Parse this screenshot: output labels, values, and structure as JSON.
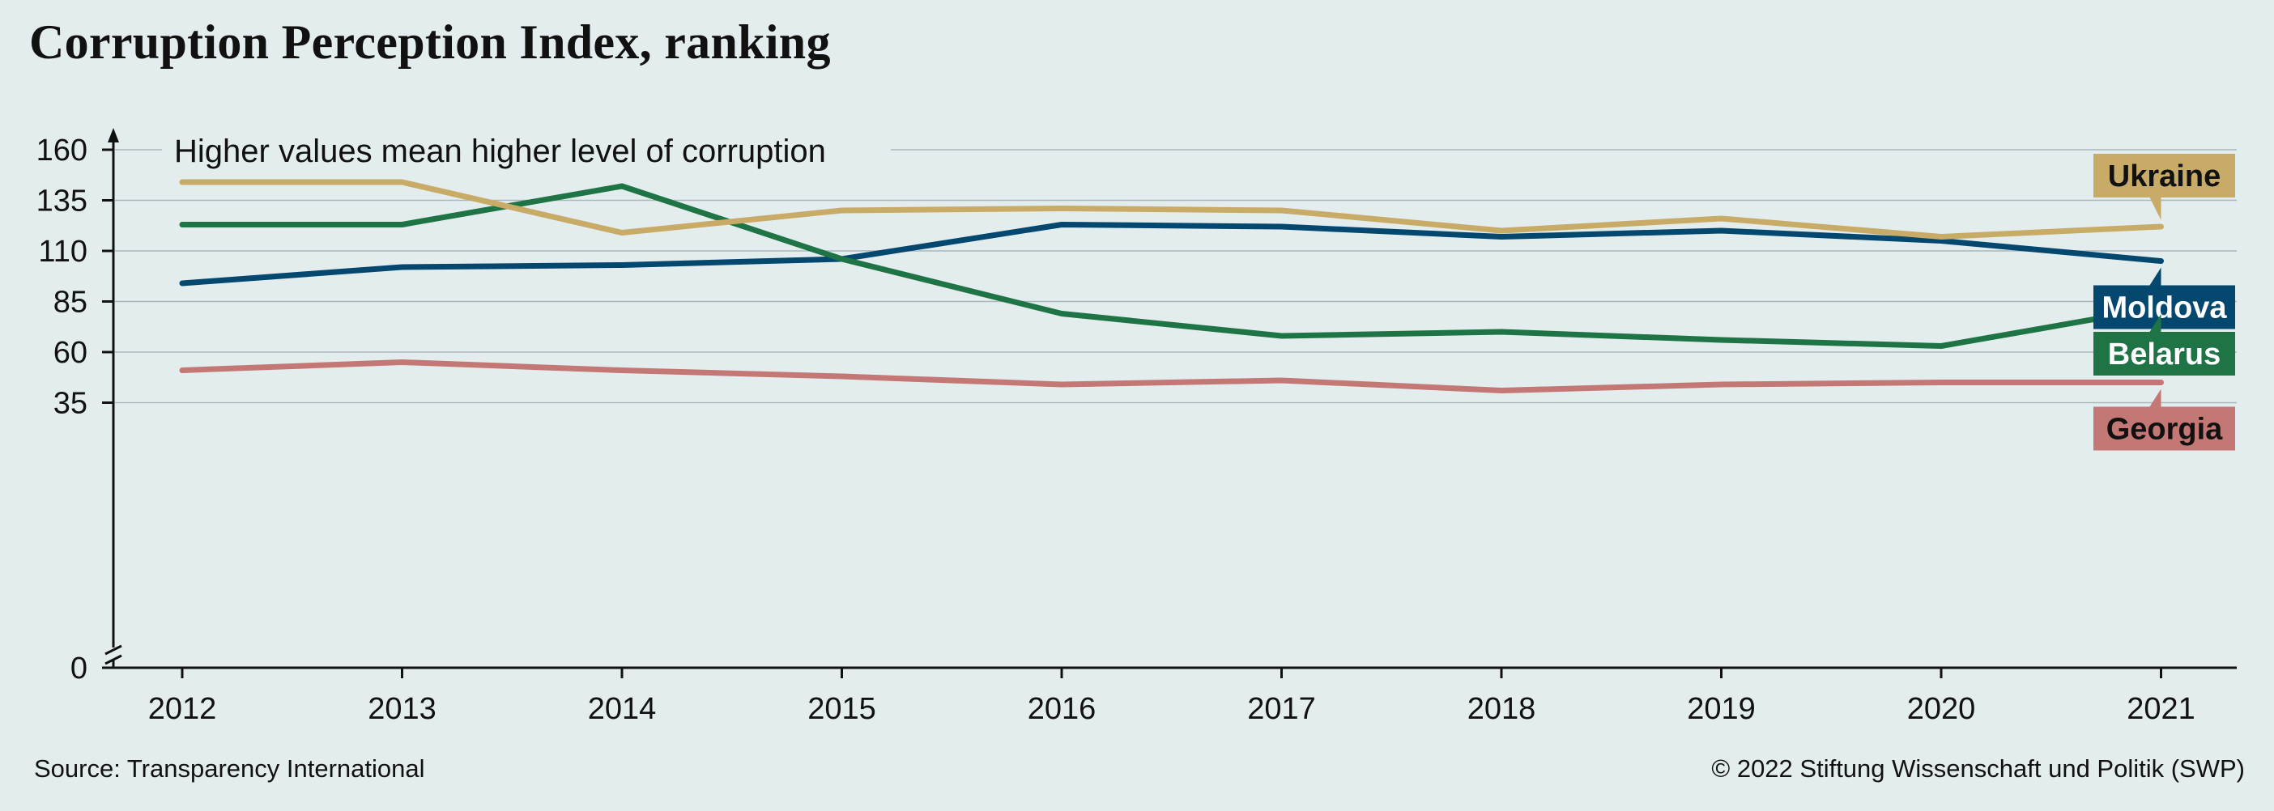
{
  "chart_data": {
    "type": "line",
    "title": "Corruption Perception Index, ranking",
    "annotation": "Higher values mean higher level of corruption",
    "x": [
      "2012",
      "2013",
      "2014",
      "2015",
      "2016",
      "2017",
      "2018",
      "2019",
      "2020",
      "2021"
    ],
    "y_ticks": [
      0,
      35,
      60,
      85,
      110,
      135,
      160
    ],
    "ylim": [
      0,
      160
    ],
    "y_axis_break": true,
    "grid": true,
    "legend": "direct labels at right end of lines",
    "series": [
      {
        "name": "Ukraine",
        "color": "#c9ab68",
        "text_color": "#111111",
        "values": [
          144,
          144,
          119,
          130,
          131,
          130,
          120,
          126,
          117,
          122
        ]
      },
      {
        "name": "Moldova",
        "color": "#04476f",
        "text_color": "#ffffff",
        "values": [
          94,
          102,
          103,
          106,
          123,
          122,
          117,
          120,
          115,
          105
        ]
      },
      {
        "name": "Belarus",
        "color": "#1e7445",
        "text_color": "#ffffff",
        "values": [
          123,
          123,
          142,
          106,
          79,
          68,
          70,
          66,
          63,
          82
        ]
      },
      {
        "name": "Georgia",
        "color": "#c47876",
        "text_color": "#111111",
        "values": [
          51,
          55,
          51,
          48,
          44,
          46,
          41,
          44,
          45,
          45
        ]
      }
    ]
  },
  "footer": {
    "source": "Source: Transparency International",
    "copyright": "© 2022 Stiftung Wissenschaft und Politik (SWP)"
  }
}
